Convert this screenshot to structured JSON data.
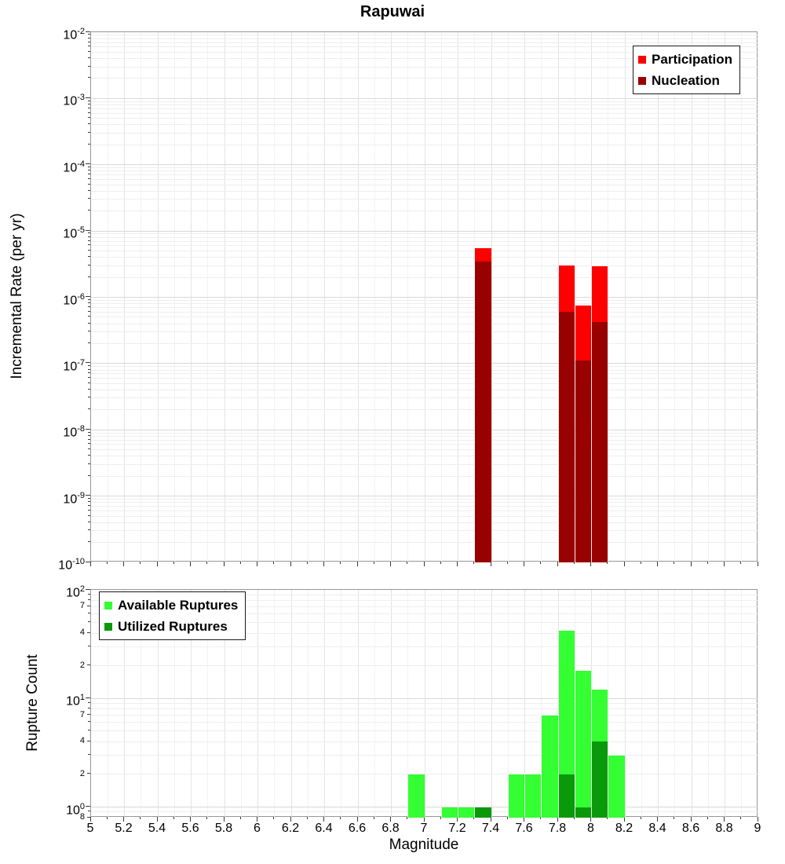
{
  "title": "Rapuwai",
  "x_axis": {
    "label": "Magnitude",
    "min": 5,
    "max": 9,
    "tick_labels": [
      "5",
      "5.2",
      "5.4",
      "5.6",
      "5.8",
      "6",
      "6.2",
      "6.4",
      "6.6",
      "6.8",
      "7",
      "7.2",
      "7.4",
      "7.6",
      "7.8",
      "8",
      "8.2",
      "8.4",
      "8.6",
      "8.8",
      "9"
    ]
  },
  "chart_data": [
    {
      "type": "bar",
      "panel": "incremental-rate",
      "ylabel": "Incremental Rate (per yr)",
      "yscale": "log",
      "ylim": [
        1e-10,
        0.01
      ],
      "xlim": [
        5,
        9
      ],
      "grid": true,
      "bin_width": 0.1,
      "legend_position": "top-right",
      "y_ticks": [
        {
          "v": 0.01,
          "exp": "-2"
        },
        {
          "v": 0.001,
          "exp": "-3"
        },
        {
          "v": 0.0001,
          "exp": "-4"
        },
        {
          "v": 1e-05,
          "exp": "-5"
        },
        {
          "v": 1e-06,
          "exp": "-6"
        },
        {
          "v": 1e-07,
          "exp": "-7"
        },
        {
          "v": 1e-08,
          "exp": "-8"
        },
        {
          "v": 1e-09,
          "exp": "-9"
        },
        {
          "v": 1e-10,
          "exp": "-10"
        }
      ],
      "legend": [
        {
          "label": "Participation",
          "color": "#ff0000"
        },
        {
          "label": "Nucleation",
          "color": "#990000"
        }
      ],
      "series": [
        {
          "name": "Participation",
          "color": "#ff0000",
          "points": [
            {
              "m": 7.35,
              "v": 5.5e-06
            },
            {
              "m": 7.85,
              "v": 3e-06
            },
            {
              "m": 7.95,
              "v": 7.5e-07
            },
            {
              "m": 8.05,
              "v": 2.9e-06
            }
          ]
        },
        {
          "name": "Nucleation",
          "color": "#990000",
          "points": [
            {
              "m": 7.35,
              "v": 3.5e-06
            },
            {
              "m": 7.85,
              "v": 6e-07
            },
            {
              "m": 7.95,
              "v": 1.1e-07
            },
            {
              "m": 8.05,
              "v": 4.2e-07
            }
          ]
        }
      ]
    },
    {
      "type": "bar",
      "panel": "rupture-count",
      "ylabel": "Rupture Count",
      "yscale": "log",
      "ylim": [
        0.8,
        100
      ],
      "xlim": [
        5,
        9
      ],
      "grid": true,
      "bin_width": 0.1,
      "legend_position": "top-left",
      "y_ticks": [
        {
          "v": 100,
          "exp": "2"
        },
        {
          "v": 70,
          "t": "7"
        },
        {
          "v": 40,
          "t": "4"
        },
        {
          "v": 20,
          "t": "2"
        },
        {
          "v": 10,
          "exp": "1"
        },
        {
          "v": 7,
          "t": "7"
        },
        {
          "v": 4,
          "t": "4"
        },
        {
          "v": 2,
          "t": "2"
        },
        {
          "v": 1,
          "exp": "0"
        },
        {
          "v": 0.8,
          "t": "8"
        }
      ],
      "legend": [
        {
          "label": "Available Ruptures",
          "color": "#33ff33"
        },
        {
          "label": "Utilized Ruptures",
          "color": "#099909"
        }
      ],
      "series": [
        {
          "name": "Available Ruptures",
          "color": "#33ff33",
          "points": [
            {
              "m": 6.95,
              "v": 2
            },
            {
              "m": 7.15,
              "v": 1
            },
            {
              "m": 7.25,
              "v": 1
            },
            {
              "m": 7.35,
              "v": 1
            },
            {
              "m": 7.55,
              "v": 2
            },
            {
              "m": 7.65,
              "v": 2
            },
            {
              "m": 7.75,
              "v": 7
            },
            {
              "m": 7.85,
              "v": 42
            },
            {
              "m": 7.95,
              "v": 18
            },
            {
              "m": 8.05,
              "v": 12
            },
            {
              "m": 8.15,
              "v": 3
            }
          ]
        },
        {
          "name": "Utilized Ruptures",
          "color": "#099909",
          "points": [
            {
              "m": 7.35,
              "v": 1
            },
            {
              "m": 7.85,
              "v": 2
            },
            {
              "m": 7.95,
              "v": 1
            },
            {
              "m": 8.05,
              "v": 4
            }
          ]
        }
      ]
    }
  ]
}
